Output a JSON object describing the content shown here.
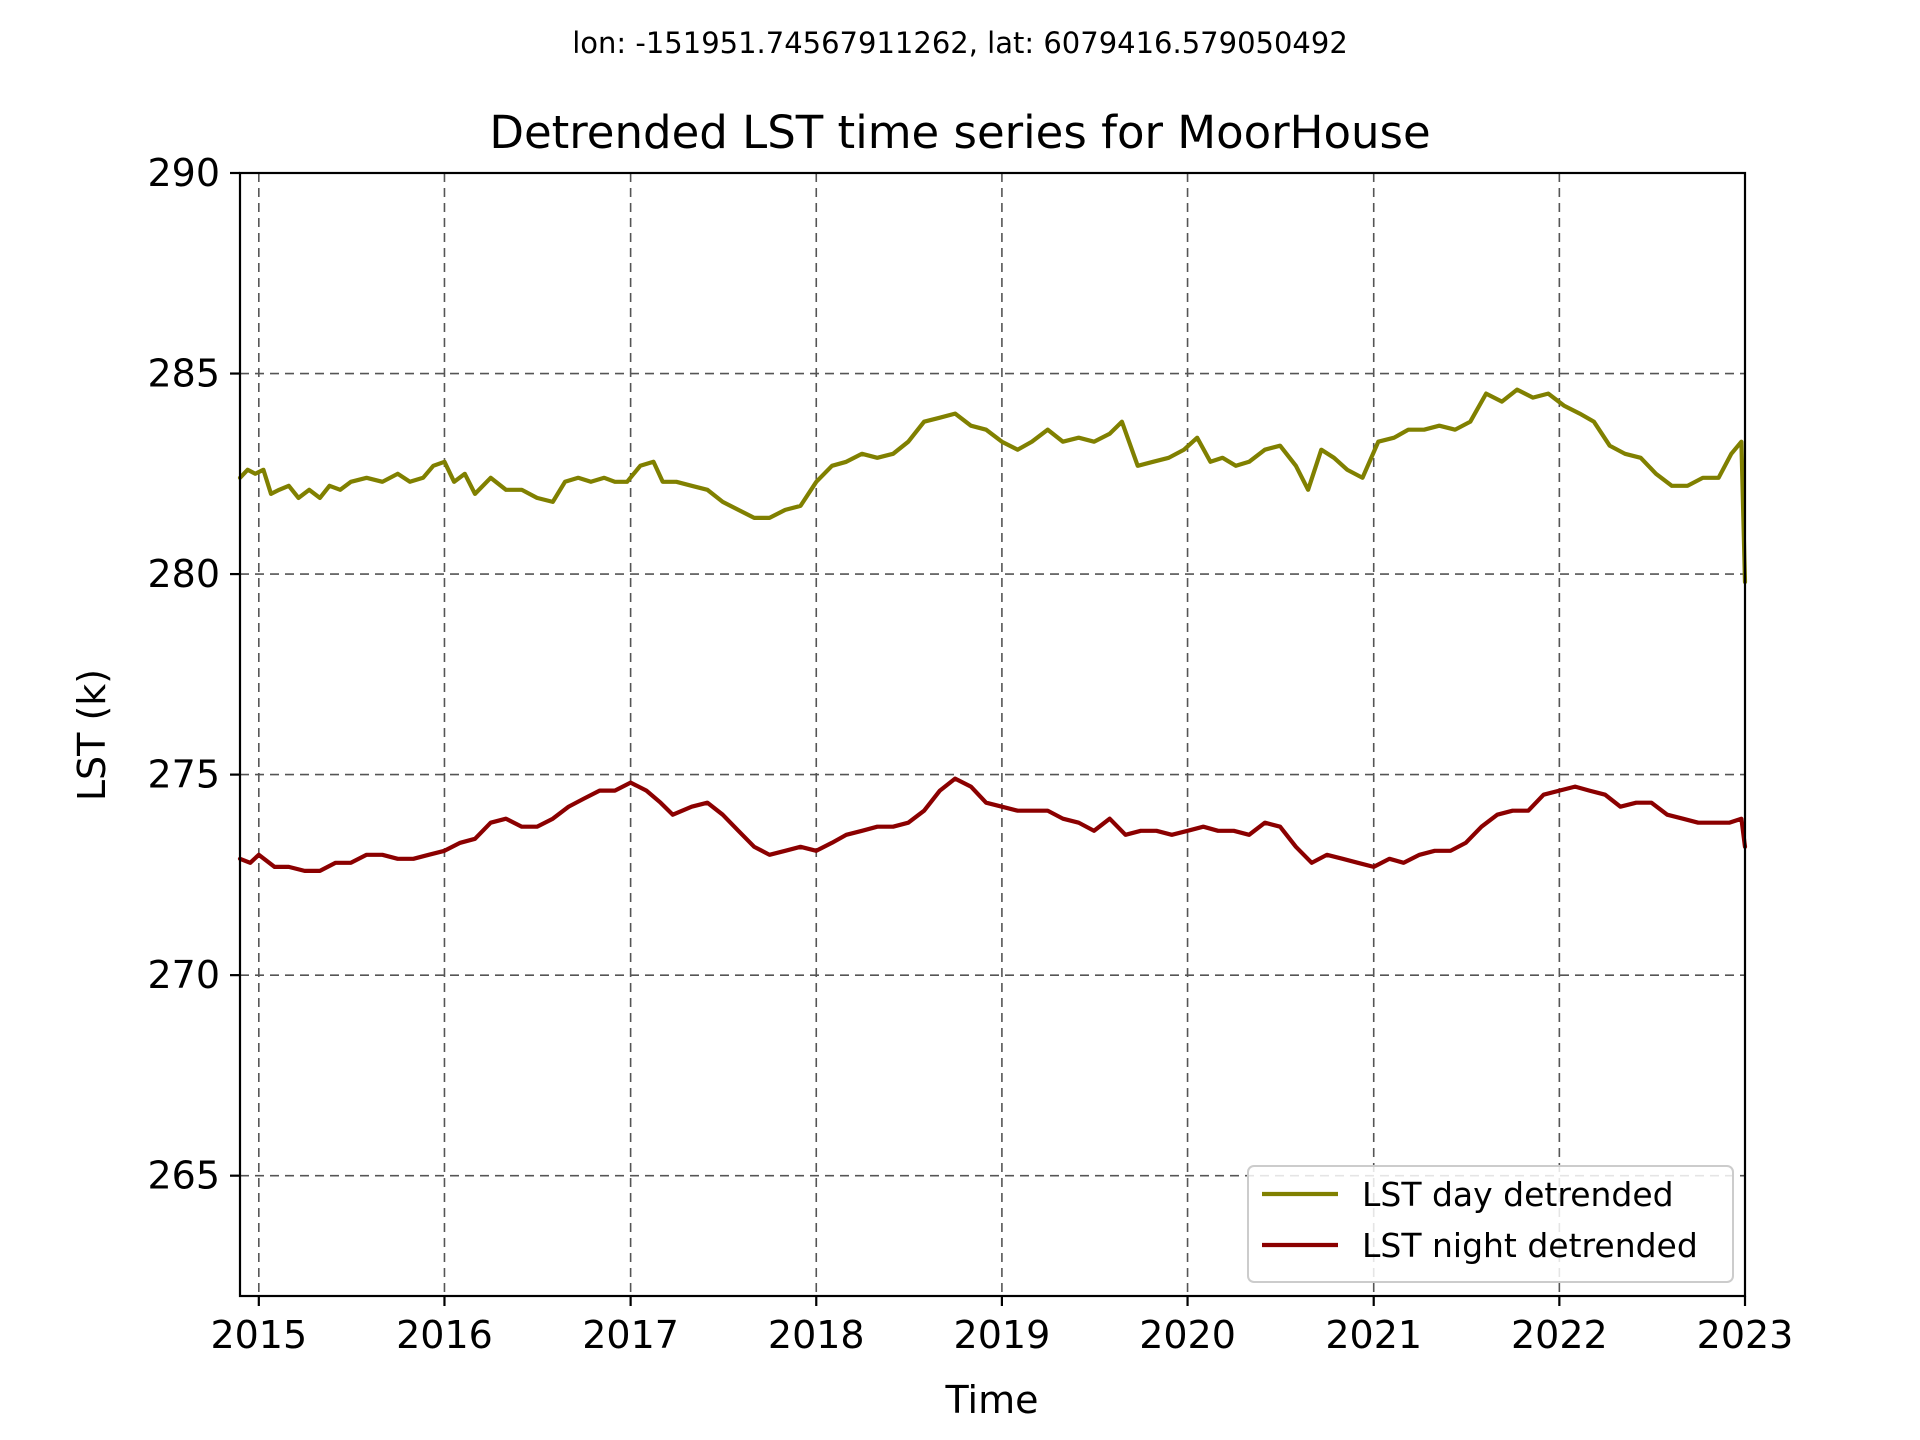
{
  "chart_data": {
    "type": "line",
    "suptitle": "lon: -151951.74567911262, lat: 6079416.579050492",
    "title": "Detrended LST time series for MoorHouse",
    "xlabel": "Time",
    "ylabel": "LST (k)",
    "xlim": [
      "2014-11-25",
      "2023-01-01"
    ],
    "ylim": [
      262,
      290
    ],
    "x_ticks": [
      "2015",
      "2016",
      "2017",
      "2018",
      "2019",
      "2020",
      "2021",
      "2022",
      "2023"
    ],
    "y_ticks": [
      "265",
      "270",
      "275",
      "280",
      "285",
      "290"
    ],
    "grid": true,
    "legend_position": "lower-right",
    "series": [
      {
        "name": "LST day detrended",
        "color": "#808000",
        "points": [
          [
            "2014-11-25",
            282.4
          ],
          [
            "2014-12-10",
            282.6
          ],
          [
            "2014-12-25",
            282.5
          ],
          [
            "2015-01-10",
            282.6
          ],
          [
            "2015-01-25",
            282.0
          ],
          [
            "2015-02-10",
            282.1
          ],
          [
            "2015-03-01",
            282.2
          ],
          [
            "2015-03-20",
            281.9
          ],
          [
            "2015-04-10",
            282.1
          ],
          [
            "2015-05-01",
            281.9
          ],
          [
            "2015-05-20",
            282.2
          ],
          [
            "2015-06-10",
            282.1
          ],
          [
            "2015-07-01",
            282.3
          ],
          [
            "2015-08-01",
            282.4
          ],
          [
            "2015-09-01",
            282.3
          ],
          [
            "2015-10-01",
            282.5
          ],
          [
            "2015-10-25",
            282.3
          ],
          [
            "2015-11-20",
            282.4
          ],
          [
            "2015-12-10",
            282.7
          ],
          [
            "2016-01-01",
            282.8
          ],
          [
            "2016-01-20",
            282.3
          ],
          [
            "2016-02-10",
            282.5
          ],
          [
            "2016-03-01",
            282.0
          ],
          [
            "2016-04-01",
            282.4
          ],
          [
            "2016-05-01",
            282.1
          ],
          [
            "2016-06-01",
            282.1
          ],
          [
            "2016-07-01",
            281.9
          ],
          [
            "2016-08-01",
            281.8
          ],
          [
            "2016-08-25",
            282.3
          ],
          [
            "2016-09-20",
            282.4
          ],
          [
            "2016-10-15",
            282.3
          ],
          [
            "2016-11-10",
            282.4
          ],
          [
            "2016-12-01",
            282.3
          ],
          [
            "2016-12-25",
            282.3
          ],
          [
            "2017-01-20",
            282.7
          ],
          [
            "2017-02-15",
            282.8
          ],
          [
            "2017-03-05",
            282.3
          ],
          [
            "2017-04-01",
            282.3
          ],
          [
            "2017-05-01",
            282.2
          ],
          [
            "2017-06-01",
            282.1
          ],
          [
            "2017-07-01",
            281.8
          ],
          [
            "2017-08-01",
            281.6
          ],
          [
            "2017-09-01",
            281.4
          ],
          [
            "2017-10-01",
            281.4
          ],
          [
            "2017-11-01",
            281.6
          ],
          [
            "2017-12-01",
            281.7
          ],
          [
            "2018-01-01",
            282.3
          ],
          [
            "2018-02-01",
            282.7
          ],
          [
            "2018-03-01",
            282.8
          ],
          [
            "2018-04-01",
            283.0
          ],
          [
            "2018-05-01",
            282.9
          ],
          [
            "2018-06-01",
            283.0
          ],
          [
            "2018-07-01",
            283.3
          ],
          [
            "2018-08-01",
            283.8
          ],
          [
            "2018-09-01",
            283.9
          ],
          [
            "2018-10-01",
            284.0
          ],
          [
            "2018-11-01",
            283.7
          ],
          [
            "2018-12-01",
            283.6
          ],
          [
            "2019-01-01",
            283.3
          ],
          [
            "2019-02-01",
            283.1
          ],
          [
            "2019-03-01",
            283.3
          ],
          [
            "2019-04-01",
            283.6
          ],
          [
            "2019-05-01",
            283.3
          ],
          [
            "2019-06-01",
            283.4
          ],
          [
            "2019-07-01",
            283.3
          ],
          [
            "2019-08-01",
            283.5
          ],
          [
            "2019-08-25",
            283.8
          ],
          [
            "2019-09-25",
            282.7
          ],
          [
            "2019-10-25",
            282.8
          ],
          [
            "2019-11-25",
            282.9
          ],
          [
            "2019-12-25",
            283.1
          ],
          [
            "2020-01-20",
            283.4
          ],
          [
            "2020-02-15",
            282.8
          ],
          [
            "2020-03-10",
            282.9
          ],
          [
            "2020-04-05",
            282.7
          ],
          [
            "2020-05-01",
            282.8
          ],
          [
            "2020-06-01",
            283.1
          ],
          [
            "2020-07-01",
            283.2
          ],
          [
            "2020-08-01",
            282.7
          ],
          [
            "2020-08-25",
            282.1
          ],
          [
            "2020-09-20",
            283.1
          ],
          [
            "2020-10-15",
            282.9
          ],
          [
            "2020-11-10",
            282.6
          ],
          [
            "2020-12-10",
            282.4
          ],
          [
            "2021-01-10",
            283.3
          ],
          [
            "2021-02-10",
            283.4
          ],
          [
            "2021-03-10",
            283.6
          ],
          [
            "2021-04-10",
            283.6
          ],
          [
            "2021-05-10",
            283.7
          ],
          [
            "2021-06-10",
            283.6
          ],
          [
            "2021-07-10",
            283.8
          ],
          [
            "2021-08-10",
            284.5
          ],
          [
            "2021-09-10",
            284.3
          ],
          [
            "2021-10-10",
            284.6
          ],
          [
            "2021-11-10",
            284.4
          ],
          [
            "2021-12-10",
            284.5
          ],
          [
            "2022-01-10",
            284.2
          ],
          [
            "2022-02-10",
            284.0
          ],
          [
            "2022-03-10",
            283.8
          ],
          [
            "2022-04-10",
            283.2
          ],
          [
            "2022-05-10",
            283.0
          ],
          [
            "2022-06-10",
            282.9
          ],
          [
            "2022-07-10",
            282.5
          ],
          [
            "2022-08-10",
            282.2
          ],
          [
            "2022-09-10",
            282.2
          ],
          [
            "2022-10-10",
            282.4
          ],
          [
            "2022-11-10",
            282.4
          ],
          [
            "2022-12-05",
            283.0
          ],
          [
            "2022-12-25",
            283.3
          ],
          [
            "2023-01-01",
            279.8
          ]
        ]
      },
      {
        "name": "LST night detrended",
        "color": "#8b0000",
        "points": [
          [
            "2014-11-25",
            272.9
          ],
          [
            "2014-12-15",
            272.8
          ],
          [
            "2015-01-01",
            273.0
          ],
          [
            "2015-02-01",
            272.7
          ],
          [
            "2015-03-01",
            272.7
          ],
          [
            "2015-04-01",
            272.6
          ],
          [
            "2015-05-01",
            272.6
          ],
          [
            "2015-06-01",
            272.8
          ],
          [
            "2015-07-01",
            272.8
          ],
          [
            "2015-08-01",
            273.0
          ],
          [
            "2015-09-01",
            273.0
          ],
          [
            "2015-10-01",
            272.9
          ],
          [
            "2015-11-01",
            272.9
          ],
          [
            "2015-12-01",
            273.0
          ],
          [
            "2016-01-01",
            273.1
          ],
          [
            "2016-02-01",
            273.3
          ],
          [
            "2016-03-01",
            273.4
          ],
          [
            "2016-04-01",
            273.8
          ],
          [
            "2016-05-01",
            273.9
          ],
          [
            "2016-06-01",
            273.7
          ],
          [
            "2016-07-01",
            273.7
          ],
          [
            "2016-08-01",
            273.9
          ],
          [
            "2016-09-01",
            274.2
          ],
          [
            "2016-10-01",
            274.4
          ],
          [
            "2016-11-01",
            274.6
          ],
          [
            "2016-12-01",
            274.6
          ],
          [
            "2017-01-01",
            274.8
          ],
          [
            "2017-02-01",
            274.6
          ],
          [
            "2017-03-01",
            274.3
          ],
          [
            "2017-03-25",
            274.0
          ],
          [
            "2017-05-01",
            274.2
          ],
          [
            "2017-06-01",
            274.3
          ],
          [
            "2017-07-01",
            274.0
          ],
          [
            "2017-08-01",
            273.6
          ],
          [
            "2017-09-01",
            273.2
          ],
          [
            "2017-10-01",
            273.0
          ],
          [
            "2017-11-01",
            273.1
          ],
          [
            "2017-12-01",
            273.2
          ],
          [
            "2018-01-01",
            273.1
          ],
          [
            "2018-02-01",
            273.3
          ],
          [
            "2018-03-01",
            273.5
          ],
          [
            "2018-04-01",
            273.6
          ],
          [
            "2018-05-01",
            273.7
          ],
          [
            "2018-06-01",
            273.7
          ],
          [
            "2018-07-01",
            273.8
          ],
          [
            "2018-08-01",
            274.1
          ],
          [
            "2018-09-01",
            274.6
          ],
          [
            "2018-10-01",
            274.9
          ],
          [
            "2018-11-01",
            274.7
          ],
          [
            "2018-12-01",
            274.3
          ],
          [
            "2019-01-01",
            274.2
          ],
          [
            "2019-02-01",
            274.1
          ],
          [
            "2019-03-01",
            274.1
          ],
          [
            "2019-04-01",
            274.1
          ],
          [
            "2019-05-01",
            273.9
          ],
          [
            "2019-06-01",
            273.8
          ],
          [
            "2019-07-01",
            273.6
          ],
          [
            "2019-08-01",
            273.9
          ],
          [
            "2019-09-01",
            273.5
          ],
          [
            "2019-10-01",
            273.6
          ],
          [
            "2019-11-01",
            273.6
          ],
          [
            "2019-12-01",
            273.5
          ],
          [
            "2020-01-01",
            273.6
          ],
          [
            "2020-02-01",
            273.7
          ],
          [
            "2020-03-01",
            273.6
          ],
          [
            "2020-04-01",
            273.6
          ],
          [
            "2020-05-01",
            273.5
          ],
          [
            "2020-06-01",
            273.8
          ],
          [
            "2020-07-01",
            273.7
          ],
          [
            "2020-08-01",
            273.2
          ],
          [
            "2020-09-01",
            272.8
          ],
          [
            "2020-10-01",
            273.0
          ],
          [
            "2020-11-01",
            272.9
          ],
          [
            "2020-12-01",
            272.8
          ],
          [
            "2021-01-01",
            272.7
          ],
          [
            "2021-02-01",
            272.9
          ],
          [
            "2021-03-01",
            272.8
          ],
          [
            "2021-04-01",
            273.0
          ],
          [
            "2021-05-01",
            273.1
          ],
          [
            "2021-06-01",
            273.1
          ],
          [
            "2021-07-01",
            273.3
          ],
          [
            "2021-08-01",
            273.7
          ],
          [
            "2021-09-01",
            274.0
          ],
          [
            "2021-10-01",
            274.1
          ],
          [
            "2021-11-01",
            274.1
          ],
          [
            "2021-12-01",
            274.5
          ],
          [
            "2022-01-01",
            274.6
          ],
          [
            "2022-02-01",
            274.7
          ],
          [
            "2022-03-01",
            274.6
          ],
          [
            "2022-04-01",
            274.5
          ],
          [
            "2022-05-01",
            274.2
          ],
          [
            "2022-06-01",
            274.3
          ],
          [
            "2022-07-01",
            274.3
          ],
          [
            "2022-08-01",
            274.0
          ],
          [
            "2022-09-01",
            273.9
          ],
          [
            "2022-10-01",
            273.8
          ],
          [
            "2022-11-01",
            273.8
          ],
          [
            "2022-12-01",
            273.8
          ],
          [
            "2022-12-25",
            273.9
          ],
          [
            "2023-01-01",
            273.2
          ]
        ]
      }
    ]
  }
}
